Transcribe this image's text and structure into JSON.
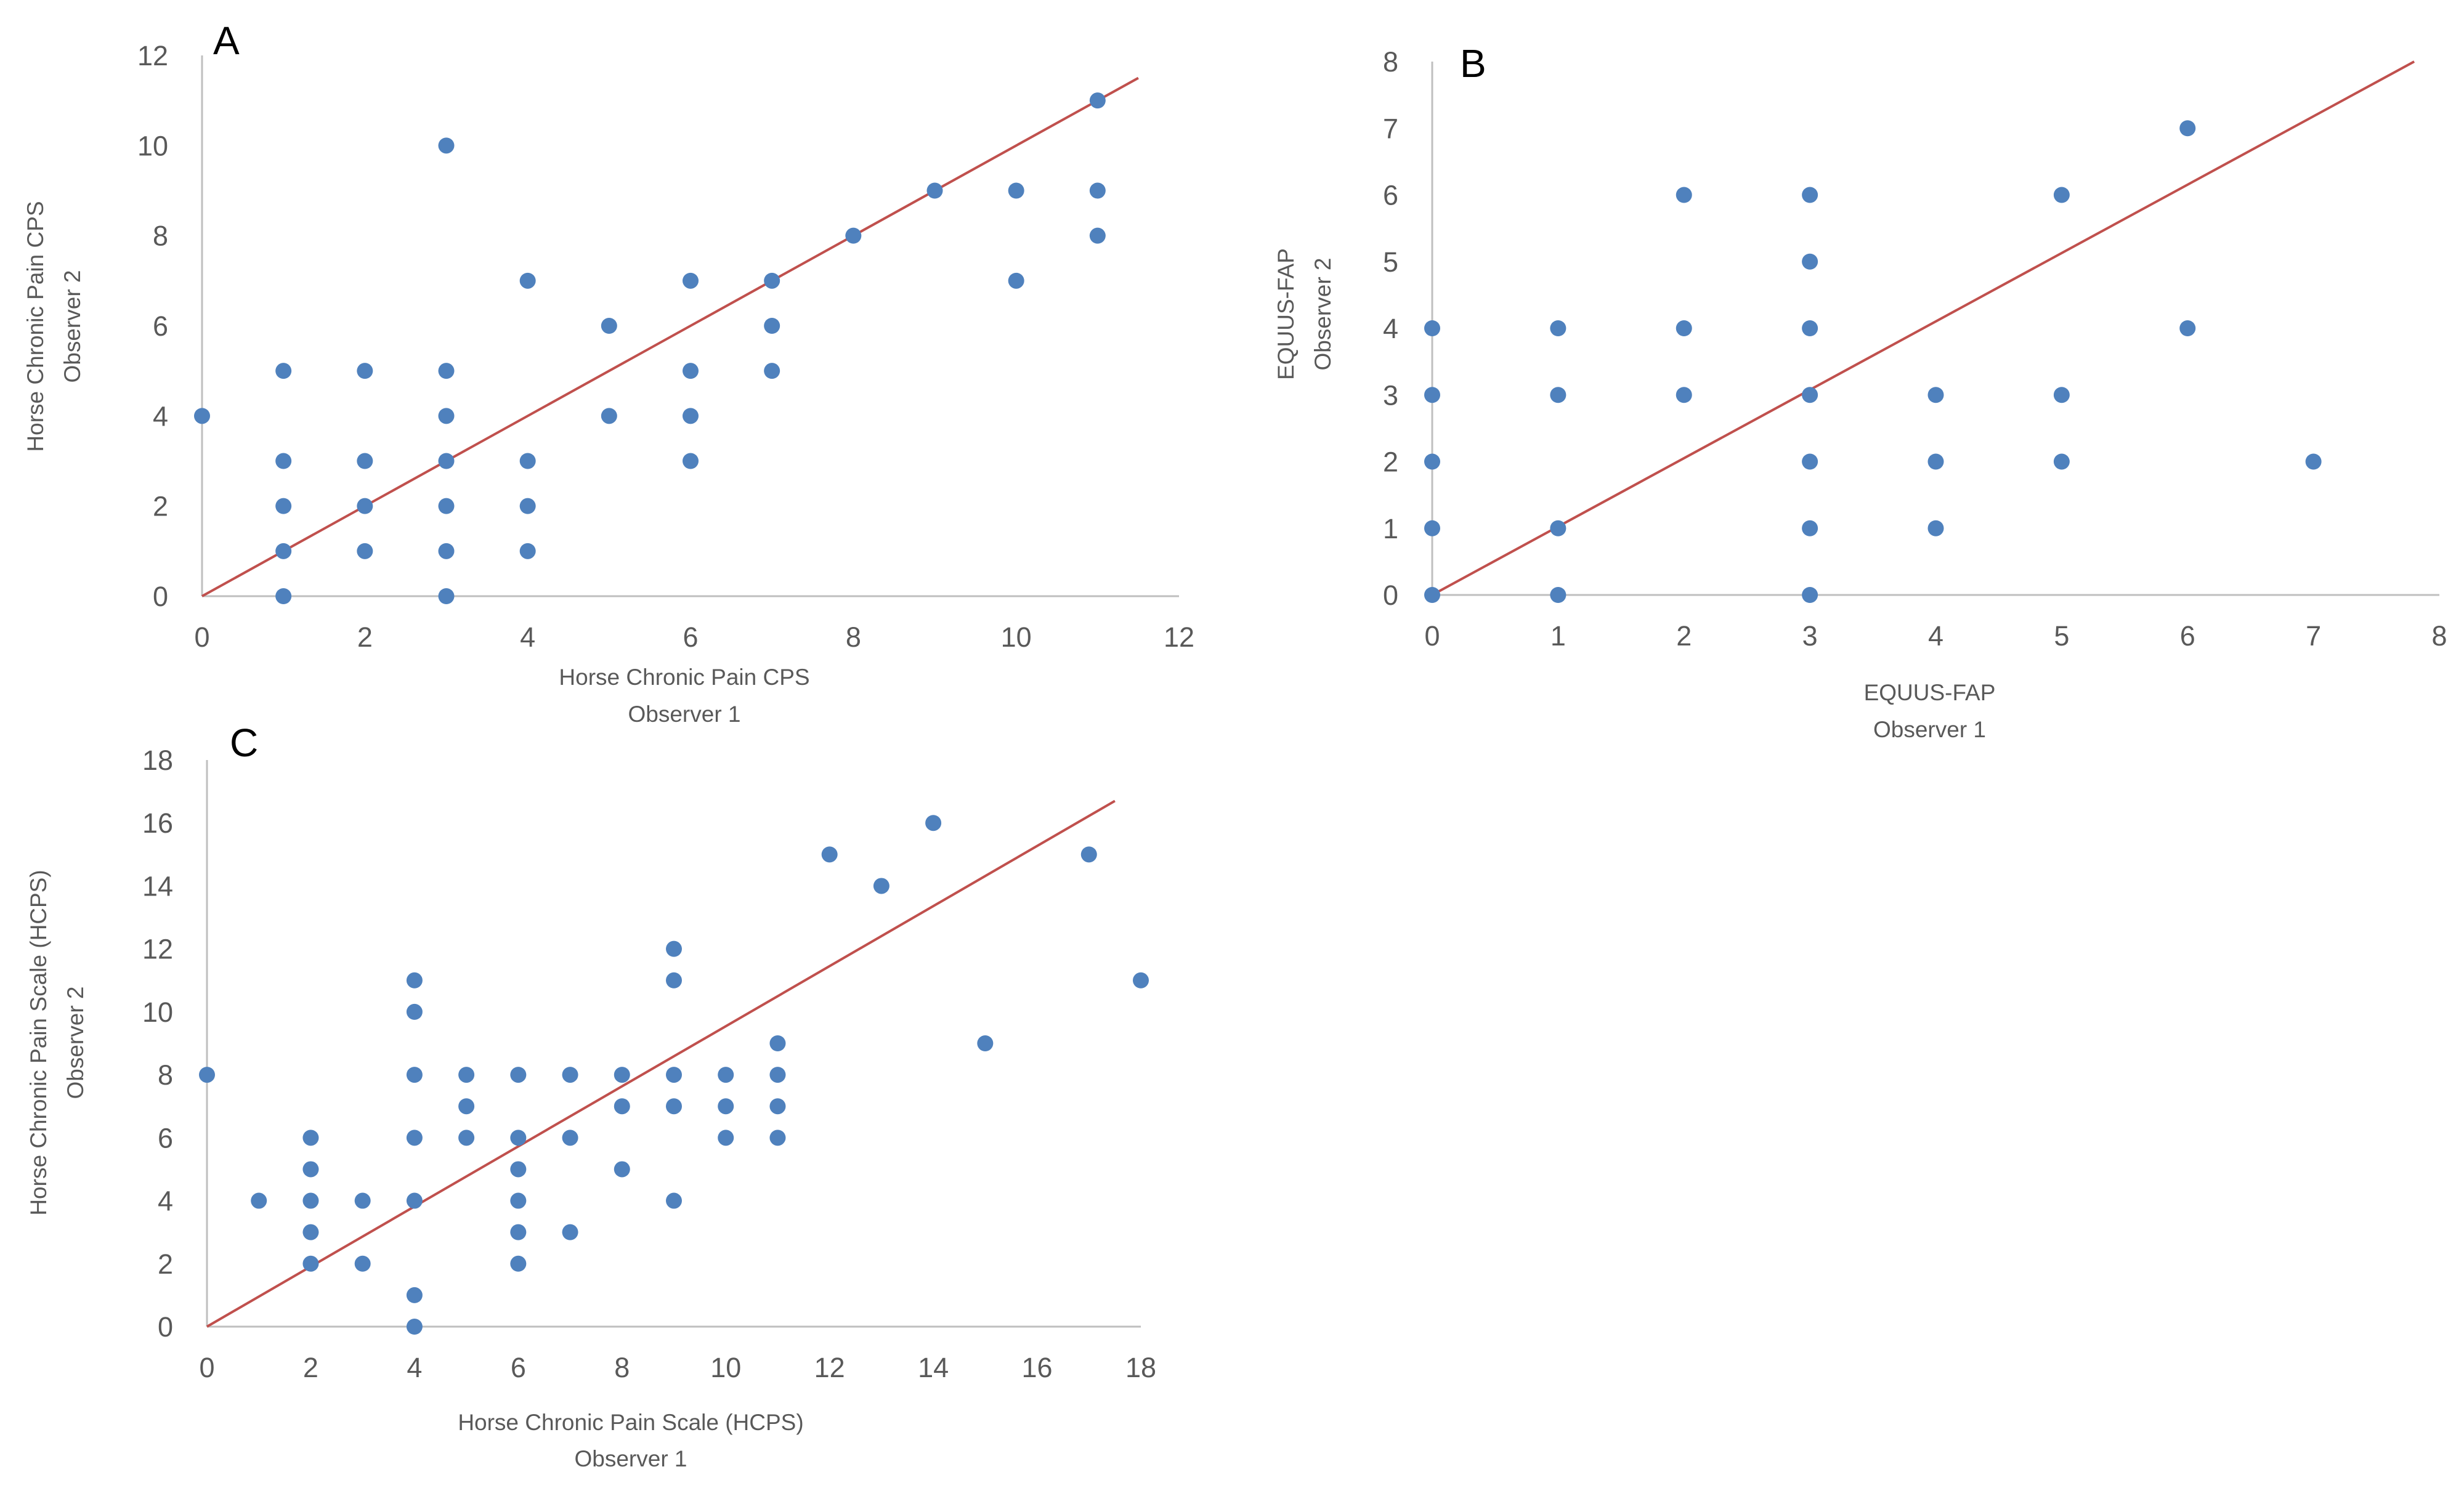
{
  "chart_data": [
    {
      "type": "scatter",
      "panel_label": "A",
      "title": "",
      "xlabel": "Horse Chronic Pain CPS",
      "xlabel_line2": "Observer 1",
      "ylabel": "Horse Chronic Pain CPS",
      "ylabel_line2": "Observer 2",
      "xlim": [
        0,
        12
      ],
      "ylim": [
        0,
        12
      ],
      "xticks": [
        0,
        2,
        4,
        6,
        8,
        10,
        12
      ],
      "yticks": [
        0,
        2,
        4,
        6,
        8,
        10,
        12
      ],
      "grid": false,
      "points": [
        [
          0,
          4
        ],
        [
          1,
          0
        ],
        [
          1,
          1
        ],
        [
          1,
          2
        ],
        [
          1,
          3
        ],
        [
          1,
          5
        ],
        [
          2,
          1
        ],
        [
          2,
          2
        ],
        [
          2,
          3
        ],
        [
          2,
          5
        ],
        [
          3,
          0
        ],
        [
          3,
          1
        ],
        [
          3,
          2
        ],
        [
          3,
          3
        ],
        [
          3,
          4
        ],
        [
          3,
          5
        ],
        [
          3,
          10
        ],
        [
          4,
          1
        ],
        [
          4,
          2
        ],
        [
          4,
          3
        ],
        [
          4,
          7
        ],
        [
          5,
          4
        ],
        [
          5,
          6
        ],
        [
          6,
          3
        ],
        [
          6,
          4
        ],
        [
          6,
          5
        ],
        [
          6,
          7
        ],
        [
          7,
          5
        ],
        [
          7,
          6
        ],
        [
          7,
          7
        ],
        [
          8,
          8
        ],
        [
          9,
          9
        ],
        [
          10,
          7
        ],
        [
          10,
          9
        ],
        [
          11,
          8
        ],
        [
          11,
          9
        ],
        [
          11,
          11
        ]
      ],
      "line": [
        [
          0,
          0
        ],
        [
          11.5,
          11.5
        ]
      ]
    },
    {
      "type": "scatter",
      "panel_label": "B",
      "title": "",
      "xlabel": "EQUUS-FAP",
      "xlabel_line2": "Observer 1",
      "ylabel": "EQUUS-FAP",
      "ylabel_line2": "Observer 2",
      "xlim": [
        0,
        8
      ],
      "ylim": [
        0,
        8
      ],
      "xticks": [
        0,
        1,
        2,
        3,
        4,
        5,
        6,
        7,
        8
      ],
      "yticks": [
        0,
        1,
        2,
        3,
        4,
        5,
        6,
        7,
        8
      ],
      "grid": false,
      "points": [
        [
          0,
          0
        ],
        [
          0,
          1
        ],
        [
          0,
          2
        ],
        [
          0,
          3
        ],
        [
          0,
          4
        ],
        [
          1,
          0
        ],
        [
          1,
          1
        ],
        [
          1,
          3
        ],
        [
          1,
          4
        ],
        [
          2,
          3
        ],
        [
          2,
          4
        ],
        [
          2,
          6
        ],
        [
          3,
          0
        ],
        [
          3,
          1
        ],
        [
          3,
          2
        ],
        [
          3,
          3
        ],
        [
          3,
          4
        ],
        [
          3,
          5
        ],
        [
          3,
          6
        ],
        [
          4,
          1
        ],
        [
          4,
          2
        ],
        [
          4,
          3
        ],
        [
          5,
          2
        ],
        [
          5,
          3
        ],
        [
          5,
          6
        ],
        [
          6,
          4
        ],
        [
          6,
          7
        ],
        [
          7,
          2
        ]
      ],
      "line": [
        [
          0,
          0
        ],
        [
          7.8,
          8
        ]
      ]
    },
    {
      "type": "scatter",
      "panel_label": "C",
      "title": "",
      "xlabel": "Horse Chronic Pain Scale (HCPS)",
      "xlabel_line2": "Observer 1",
      "ylabel": "Horse Chronic Pain Scale (HCPS)",
      "ylabel_line2": "Observer 2",
      "xlim": [
        0,
        18
      ],
      "ylim": [
        0,
        18
      ],
      "xticks": [
        0,
        2,
        4,
        6,
        8,
        10,
        12,
        14,
        16,
        18
      ],
      "yticks": [
        0,
        2,
        4,
        6,
        8,
        10,
        12,
        14,
        16,
        18
      ],
      "grid": false,
      "points": [
        [
          0,
          8
        ],
        [
          1,
          4
        ],
        [
          2,
          2
        ],
        [
          2,
          3
        ],
        [
          2,
          4
        ],
        [
          2,
          5
        ],
        [
          2,
          6
        ],
        [
          3,
          2
        ],
        [
          3,
          4
        ],
        [
          4,
          0
        ],
        [
          4,
          1
        ],
        [
          4,
          4
        ],
        [
          4,
          6
        ],
        [
          4,
          8
        ],
        [
          4,
          10
        ],
        [
          4,
          11
        ],
        [
          5,
          6
        ],
        [
          5,
          7
        ],
        [
          5,
          8
        ],
        [
          6,
          2
        ],
        [
          6,
          3
        ],
        [
          6,
          4
        ],
        [
          6,
          5
        ],
        [
          6,
          6
        ],
        [
          6,
          8
        ],
        [
          7,
          3
        ],
        [
          7,
          6
        ],
        [
          7,
          8
        ],
        [
          8,
          5
        ],
        [
          8,
          7
        ],
        [
          8,
          8
        ],
        [
          9,
          4
        ],
        [
          9,
          7
        ],
        [
          9,
          8
        ],
        [
          9,
          11
        ],
        [
          9,
          12
        ],
        [
          10,
          6
        ],
        [
          10,
          7
        ],
        [
          10,
          8
        ],
        [
          11,
          6
        ],
        [
          11,
          7
        ],
        [
          11,
          8
        ],
        [
          11,
          9
        ],
        [
          12,
          15
        ],
        [
          13,
          14
        ],
        [
          14,
          16
        ],
        [
          15,
          9
        ],
        [
          17,
          15
        ],
        [
          18,
          11
        ]
      ],
      "line": [
        [
          0,
          0
        ],
        [
          17.5,
          16.7
        ]
      ]
    }
  ],
  "colors": {
    "marker": "#4f81bd",
    "line": "#c0504d",
    "axis": "#bfbfbf",
    "text": "#595959"
  }
}
